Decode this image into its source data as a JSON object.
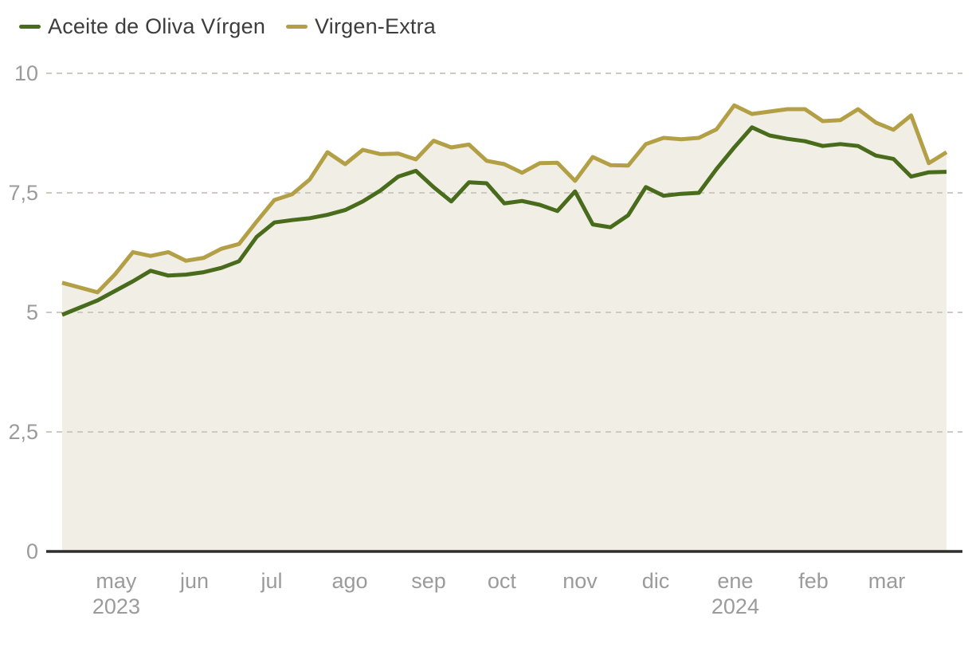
{
  "legend": {
    "items": [
      {
        "label": "Aceite de Oliva Vírgen",
        "color": "#496b1c"
      },
      {
        "label": "Virgen-Extra",
        "color": "#b3a046"
      }
    ]
  },
  "chart_data": {
    "type": "line",
    "x_unit": "weekly observations, Apr 2023 - Mar 2024",
    "series": [
      {
        "name": "Aceite de Oliva Vírgen",
        "color": "#496b1c",
        "values": [
          4.95,
          5.1,
          5.25,
          5.45,
          5.65,
          5.87,
          5.77,
          5.79,
          5.84,
          5.93,
          6.07,
          6.58,
          6.88,
          6.93,
          6.97,
          7.04,
          7.14,
          7.32,
          7.55,
          7.84,
          7.96,
          7.62,
          7.32,
          7.72,
          7.7,
          7.28,
          7.33,
          7.25,
          7.12,
          7.53,
          6.84,
          6.78,
          7.03,
          7.62,
          7.44,
          7.48,
          7.5,
          8.0,
          8.45,
          8.87,
          8.7,
          8.63,
          8.58,
          8.48,
          8.52,
          8.48,
          8.28,
          8.21,
          7.84,
          7.93,
          7.94
        ]
      },
      {
        "name": "Virgen-Extra",
        "color": "#b3a046",
        "values": [
          5.62,
          5.52,
          5.42,
          5.8,
          6.26,
          6.18,
          6.26,
          6.08,
          6.14,
          6.33,
          6.43,
          6.9,
          7.35,
          7.47,
          7.78,
          8.35,
          8.1,
          8.4,
          8.31,
          8.32,
          8.2,
          8.59,
          8.45,
          8.51,
          8.17,
          8.1,
          7.92,
          8.12,
          8.13,
          7.75,
          8.25,
          8.08,
          8.07,
          8.52,
          8.65,
          8.62,
          8.65,
          8.83,
          9.33,
          9.15,
          9.2,
          9.25,
          9.25,
          9.0,
          9.02,
          9.25,
          8.97,
          8.82,
          9.12,
          8.12,
          8.35
        ]
      }
    ],
    "x_ticks": [
      {
        "label": "may",
        "index": 3.06,
        "year": "2023"
      },
      {
        "label": "jun",
        "index": 7.48
      },
      {
        "label": "jul",
        "index": 11.85
      },
      {
        "label": "ago",
        "index": 16.26
      },
      {
        "label": "sep",
        "index": 20.72
      },
      {
        "label": "oct",
        "index": 24.86
      },
      {
        "label": "nov",
        "index": 29.28
      },
      {
        "label": "dic",
        "index": 33.56
      },
      {
        "label": "ene",
        "index": 38.06,
        "year": "2024"
      },
      {
        "label": "feb",
        "index": 42.48
      },
      {
        "label": "mar",
        "index": 46.62
      }
    ],
    "y_ticks": [
      {
        "label": "0",
        "value": 0
      },
      {
        "label": "2,5",
        "value": 2.5
      },
      {
        "label": "5",
        "value": 5
      },
      {
        "label": "7,5",
        "value": 7.5
      },
      {
        "label": "10",
        "value": 10
      }
    ],
    "ylim": [
      0,
      10
    ],
    "grid": "horizontal-dashed",
    "legend_position": "top-left",
    "area_fill_color": "#f1eee5",
    "gridline_color": "#cccac3",
    "axis_color": "#2e2e2e",
    "tick_label_color": "#9b9b9b"
  }
}
